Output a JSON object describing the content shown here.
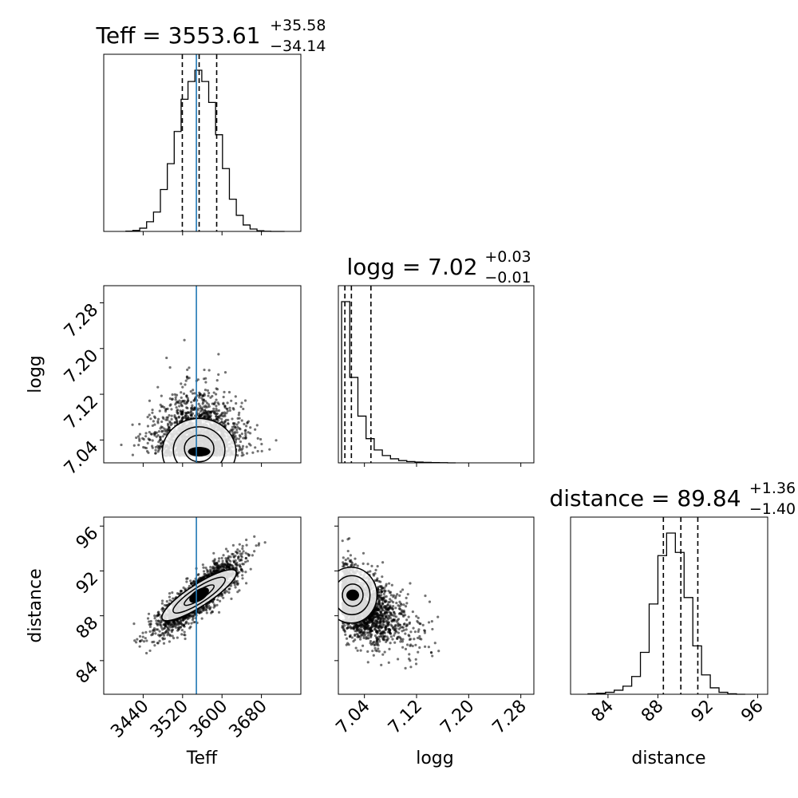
{
  "chart_data": [
    {
      "type": "histogram",
      "panel": "Teff",
      "title": {
        "name": "Teff",
        "value": "3553.61",
        "plus": "+35.58",
        "minus": "−34.14"
      },
      "xlim": [
        3360,
        3760
      ],
      "bins": [
        3405,
        3419,
        3433,
        3447,
        3461,
        3475,
        3489,
        3503,
        3517,
        3531,
        3545,
        3559,
        3573,
        3587,
        3601,
        3615,
        3629,
        3643,
        3657,
        3671,
        3685,
        3699,
        3713,
        3727
      ],
      "counts": [
        0.002,
        0.006,
        0.02,
        0.06,
        0.12,
        0.26,
        0.42,
        0.62,
        0.82,
        0.93,
        1.0,
        0.93,
        0.8,
        0.6,
        0.39,
        0.2,
        0.1,
        0.04,
        0.015,
        0.004,
        0.001,
        0.0,
        0.0
      ],
      "quantiles": [
        3519.47,
        3553.61,
        3589.19
      ],
      "truth": 3548,
      "x_ticks": [
        3440,
        3520,
        3600,
        3680
      ]
    },
    {
      "type": "histogram",
      "panel": "logg",
      "title": {
        "name": "logg",
        "value": "7.02",
        "plus": "+0.03",
        "minus": "−0.01"
      },
      "xlim": [
        7.0,
        7.3
      ],
      "bins": [
        7.005,
        7.0175,
        7.03,
        7.0425,
        7.055,
        7.0675,
        7.08,
        7.0925,
        7.105,
        7.1175,
        7.13,
        7.1425,
        7.155,
        7.1675,
        7.18
      ],
      "counts": [
        1.0,
        0.53,
        0.29,
        0.15,
        0.08,
        0.045,
        0.025,
        0.014,
        0.008,
        0.005,
        0.003,
        0.002,
        0.001,
        0.0
      ],
      "quantiles": [
        7.01,
        7.02,
        7.05
      ],
      "x_ticks": [
        7.04,
        7.12,
        7.2,
        7.28
      ]
    },
    {
      "type": "histogram",
      "panel": "distance",
      "title": {
        "name": "distance",
        "value": "89.84",
        "plus": "+1.36",
        "minus": "−1.40"
      },
      "xlim": [
        81,
        96.8
      ],
      "bins": [
        82.4,
        83.1,
        83.8,
        84.5,
        85.2,
        85.9,
        86.6,
        87.3,
        88.0,
        88.7,
        89.4,
        90.1,
        90.8,
        91.5,
        92.2,
        92.9,
        93.6,
        94.3,
        95.0
      ],
      "counts": [
        0.003,
        0.006,
        0.012,
        0.025,
        0.05,
        0.11,
        0.26,
        0.56,
        0.86,
        1.0,
        0.88,
        0.6,
        0.3,
        0.12,
        0.04,
        0.012,
        0.003,
        0.0
      ],
      "quantiles": [
        88.44,
        89.84,
        91.2
      ],
      "x_ticks": [
        84,
        88,
        92,
        96
      ]
    },
    {
      "type": "scatter-contour",
      "panel": "logg vs Teff",
      "x": "Teff",
      "y": "logg",
      "xlim": [
        3360,
        3760
      ],
      "ylim": [
        7.0,
        7.31
      ],
      "center": [
        3553.61,
        7.02
      ],
      "spread": [
        35.6,
        0.025
      ],
      "truth_x": 3548,
      "x_ticks": [
        3440,
        3520,
        3600,
        3680
      ],
      "y_ticks": [
        7.04,
        7.12,
        7.2,
        7.28
      ]
    },
    {
      "type": "scatter-contour",
      "panel": "distance vs Teff",
      "x": "Teff",
      "y": "distance",
      "xlim": [
        3360,
        3760
      ],
      "ylim": [
        81,
        96.8
      ],
      "center": [
        3553.61,
        89.84
      ],
      "spread": [
        35.6,
        1.38
      ],
      "correlation": 0.85,
      "truth_x": 3548,
      "x_ticks": [
        3440,
        3520,
        3600,
        3680
      ],
      "y_ticks": [
        84,
        88,
        92,
        96
      ]
    },
    {
      "type": "scatter-contour",
      "panel": "distance vs logg",
      "x": "logg",
      "y": "distance",
      "xlim": [
        7.0,
        7.3
      ],
      "ylim": [
        81,
        96.8
      ],
      "center": [
        7.02,
        89.84
      ],
      "spread": [
        0.025,
        1.38
      ],
      "correlation": -0.5,
      "x_ticks": [
        7.04,
        7.12,
        7.2,
        7.28
      ],
      "y_ticks": [
        84,
        88,
        92,
        96
      ]
    }
  ],
  "axis_labels": {
    "x": [
      "Teff",
      "logg",
      "distance"
    ],
    "y": [
      "logg",
      "distance"
    ]
  },
  "colors": {
    "truth": "#1f77b4",
    "ink": "#000000"
  }
}
